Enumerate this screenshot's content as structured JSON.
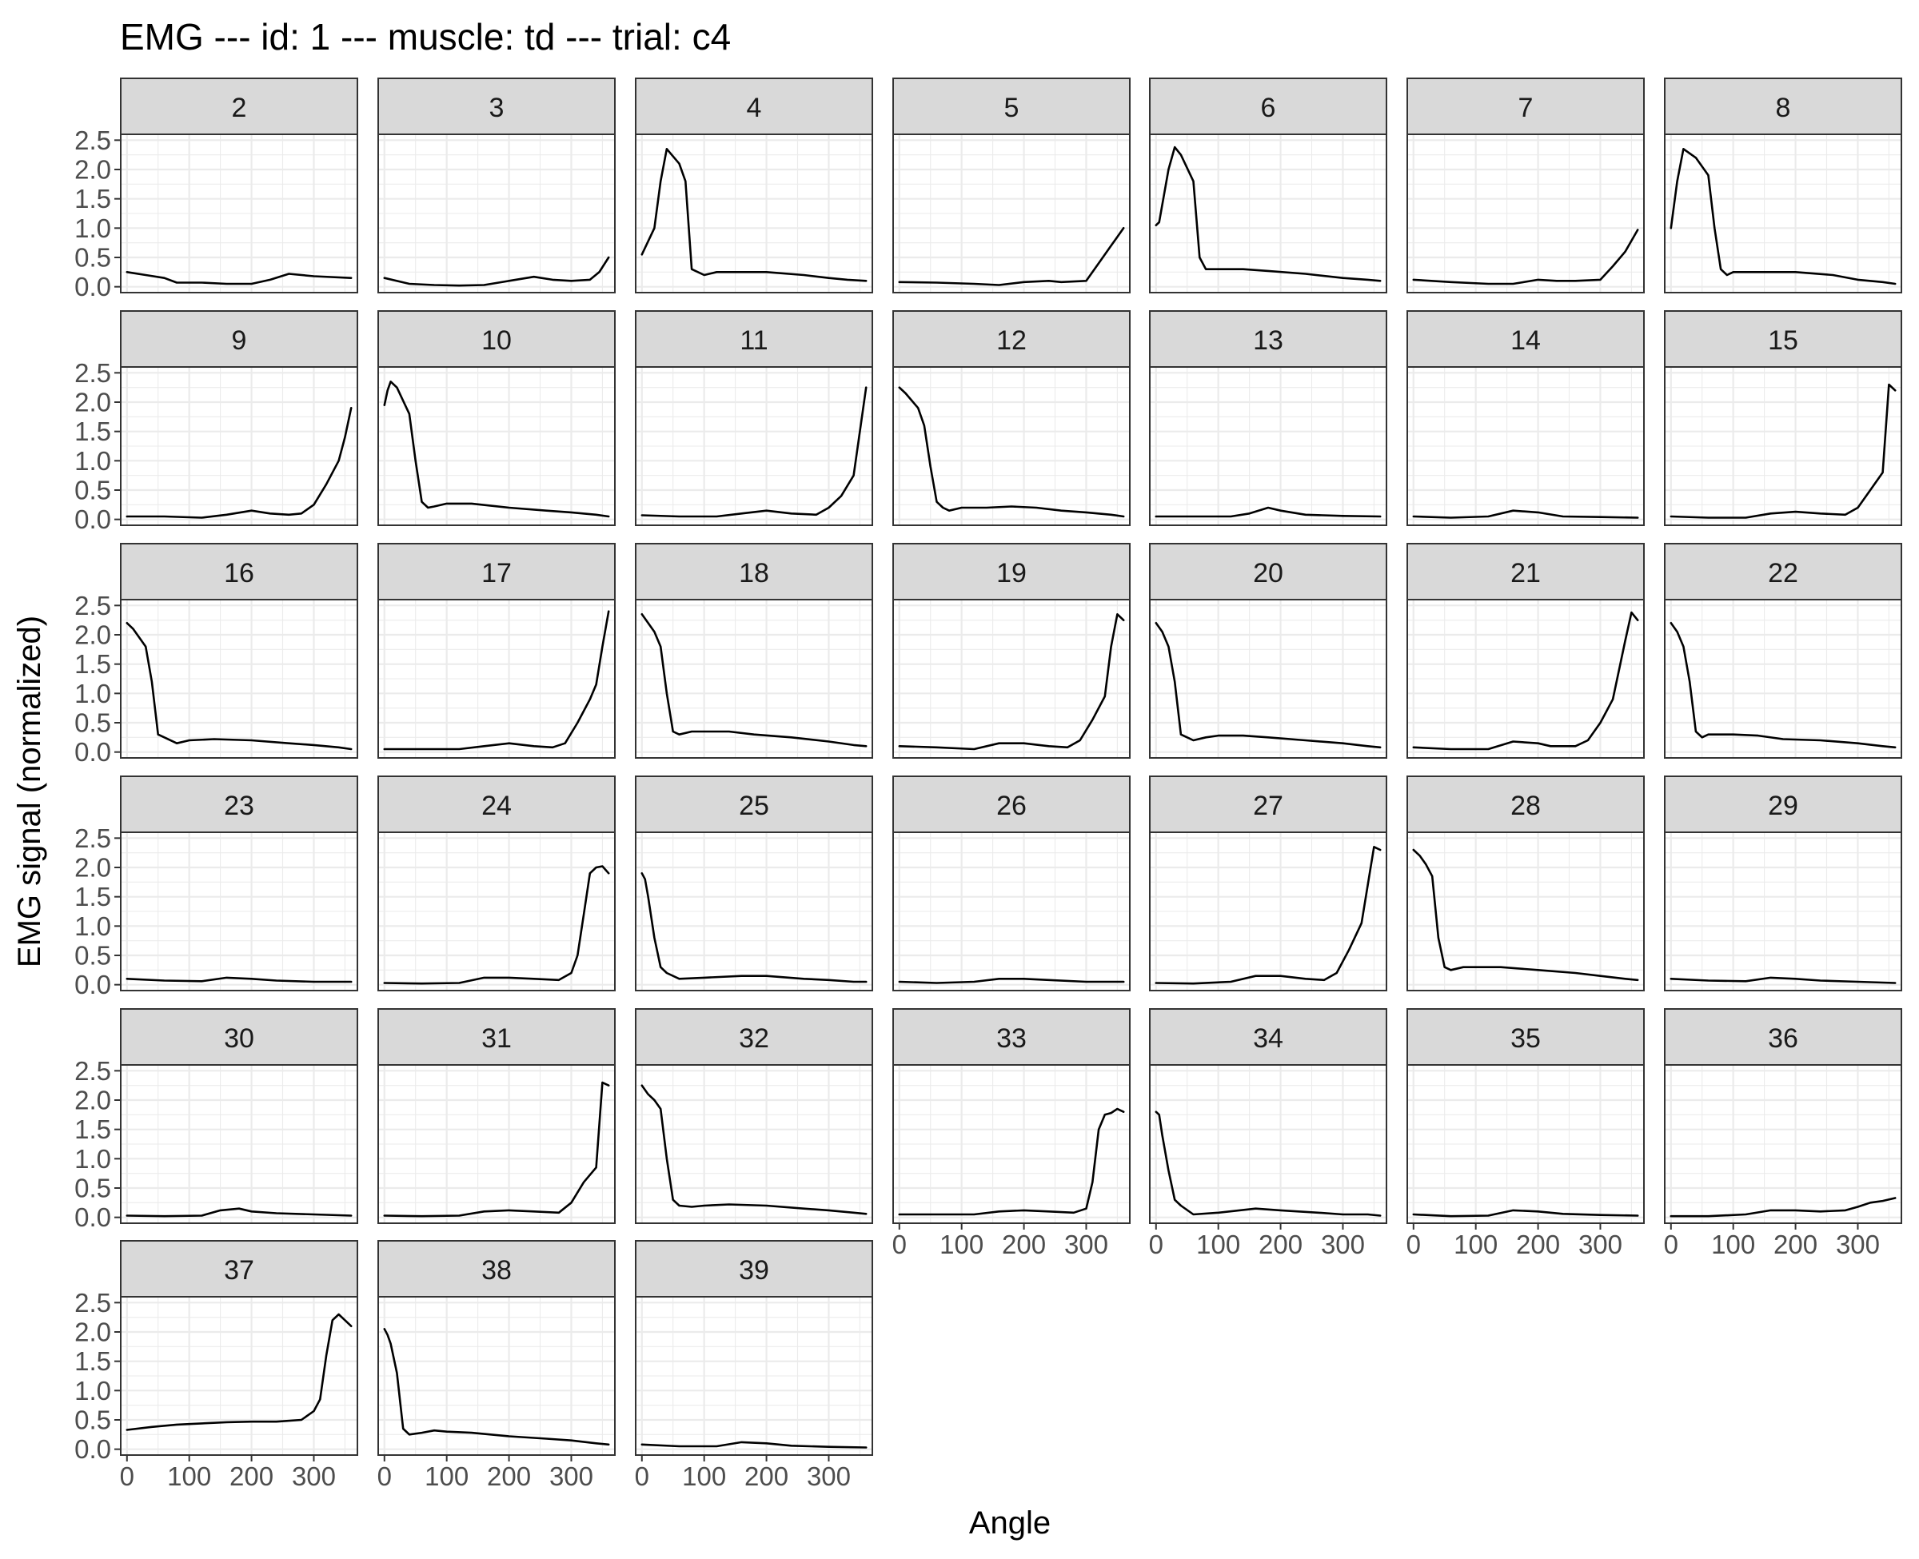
{
  "chart_data": {
    "type": "line",
    "title": "EMG --- id: 1 --- muscle: td --- trial: c4",
    "xlabel": "Angle",
    "ylabel": "EMG signal (normalized)",
    "xlim": [
      -10,
      370
    ],
    "ylim": [
      -0.1,
      2.6
    ],
    "x_ticks": [
      0,
      100,
      200,
      300
    ],
    "x_tick_labels": [
      "0",
      "100",
      "200",
      "300"
    ],
    "y_ticks": [
      0,
      0.5,
      1,
      1.5,
      2,
      2.5
    ],
    "y_tick_labels": [
      "0.0",
      "0.5",
      "1.0",
      "1.5",
      "2.0",
      "2.5"
    ],
    "grid": true,
    "layout": "facet_wrap ncol 7",
    "line_color": "#000000",
    "strip_fill": "#d9d9d9",
    "panels": [
      {
        "label": "2",
        "x": [
          0,
          30,
          60,
          80,
          120,
          160,
          200,
          230,
          260,
          300,
          360
        ],
        "y": [
          0.25,
          0.2,
          0.15,
          0.07,
          0.07,
          0.05,
          0.05,
          0.12,
          0.22,
          0.18,
          0.15
        ]
      },
      {
        "label": "3",
        "x": [
          0,
          40,
          80,
          120,
          160,
          200,
          240,
          270,
          300,
          330,
          345,
          360
        ],
        "y": [
          0.15,
          0.05,
          0.03,
          0.02,
          0.03,
          0.1,
          0.17,
          0.12,
          0.1,
          0.12,
          0.25,
          0.5
        ]
      },
      {
        "label": "4",
        "x": [
          0,
          20,
          30,
          40,
          60,
          70,
          80,
          100,
          120,
          160,
          200,
          260,
          300,
          330,
          360
        ],
        "y": [
          0.55,
          1.0,
          1.8,
          2.35,
          2.1,
          1.8,
          0.3,
          0.2,
          0.25,
          0.25,
          0.25,
          0.2,
          0.15,
          0.12,
          0.1
        ]
      },
      {
        "label": "5",
        "x": [
          0,
          60,
          120,
          160,
          200,
          240,
          260,
          300,
          320,
          340,
          360
        ],
        "y": [
          0.08,
          0.07,
          0.05,
          0.03,
          0.08,
          0.1,
          0.08,
          0.1,
          0.4,
          0.7,
          1.0
        ]
      },
      {
        "label": "6",
        "x": [
          0,
          5,
          20,
          30,
          40,
          60,
          70,
          80,
          100,
          140,
          180,
          240,
          300,
          340,
          360
        ],
        "y": [
          1.05,
          1.1,
          2.0,
          2.38,
          2.25,
          1.8,
          0.5,
          0.3,
          0.3,
          0.3,
          0.27,
          0.22,
          0.15,
          0.12,
          0.1
        ]
      },
      {
        "label": "7",
        "x": [
          0,
          60,
          120,
          160,
          200,
          230,
          260,
          300,
          320,
          340,
          360
        ],
        "y": [
          0.12,
          0.08,
          0.05,
          0.05,
          0.12,
          0.1,
          0.1,
          0.12,
          0.35,
          0.6,
          0.97
        ]
      },
      {
        "label": "8",
        "x": [
          0,
          10,
          20,
          40,
          60,
          70,
          80,
          90,
          100,
          140,
          200,
          260,
          300,
          340,
          360
        ],
        "y": [
          1.0,
          1.8,
          2.35,
          2.2,
          1.9,
          1.0,
          0.3,
          0.2,
          0.25,
          0.25,
          0.25,
          0.2,
          0.12,
          0.08,
          0.05
        ]
      },
      {
        "label": "9",
        "x": [
          0,
          60,
          120,
          160,
          200,
          230,
          260,
          280,
          300,
          320,
          340,
          350,
          360
        ],
        "y": [
          0.05,
          0.05,
          0.03,
          0.08,
          0.15,
          0.1,
          0.08,
          0.1,
          0.25,
          0.6,
          1.0,
          1.4,
          1.9
        ]
      },
      {
        "label": "10",
        "x": [
          0,
          5,
          10,
          20,
          40,
          50,
          60,
          70,
          80,
          100,
          140,
          200,
          260,
          300,
          340,
          360
        ],
        "y": [
          1.95,
          2.2,
          2.35,
          2.25,
          1.8,
          1.0,
          0.3,
          0.2,
          0.22,
          0.27,
          0.27,
          0.2,
          0.15,
          0.12,
          0.08,
          0.05
        ]
      },
      {
        "label": "11",
        "x": [
          0,
          60,
          120,
          160,
          200,
          240,
          280,
          300,
          320,
          340,
          350,
          360
        ],
        "y": [
          0.07,
          0.05,
          0.05,
          0.1,
          0.15,
          0.1,
          0.08,
          0.2,
          0.4,
          0.75,
          1.5,
          2.25
        ]
      },
      {
        "label": "12",
        "x": [
          0,
          10,
          30,
          40,
          50,
          60,
          70,
          80,
          100,
          140,
          180,
          220,
          260,
          300,
          340,
          360
        ],
        "y": [
          2.25,
          2.15,
          1.9,
          1.6,
          0.9,
          0.3,
          0.2,
          0.15,
          0.2,
          0.2,
          0.22,
          0.2,
          0.15,
          0.12,
          0.08,
          0.05
        ]
      },
      {
        "label": "13",
        "x": [
          0,
          60,
          120,
          150,
          180,
          200,
          240,
          300,
          360
        ],
        "y": [
          0.05,
          0.05,
          0.05,
          0.1,
          0.2,
          0.15,
          0.08,
          0.06,
          0.05
        ]
      },
      {
        "label": "14",
        "x": [
          0,
          60,
          120,
          160,
          200,
          240,
          300,
          360
        ],
        "y": [
          0.05,
          0.03,
          0.05,
          0.15,
          0.12,
          0.05,
          0.04,
          0.03
        ]
      },
      {
        "label": "15",
        "x": [
          0,
          60,
          120,
          160,
          200,
          240,
          280,
          300,
          320,
          340,
          350,
          360
        ],
        "y": [
          0.05,
          0.03,
          0.03,
          0.1,
          0.13,
          0.1,
          0.08,
          0.2,
          0.5,
          0.8,
          2.3,
          2.2
        ]
      },
      {
        "label": "16",
        "x": [
          0,
          10,
          20,
          30,
          40,
          50,
          60,
          80,
          100,
          140,
          200,
          260,
          300,
          340,
          360
        ],
        "y": [
          2.2,
          2.1,
          1.95,
          1.8,
          1.2,
          0.3,
          0.25,
          0.15,
          0.2,
          0.22,
          0.2,
          0.15,
          0.12,
          0.08,
          0.05
        ]
      },
      {
        "label": "17",
        "x": [
          0,
          60,
          120,
          160,
          200,
          240,
          270,
          290,
          310,
          330,
          340,
          350,
          360
        ],
        "y": [
          0.05,
          0.05,
          0.05,
          0.1,
          0.15,
          0.1,
          0.08,
          0.15,
          0.5,
          0.9,
          1.15,
          1.8,
          2.4
        ]
      },
      {
        "label": "18",
        "x": [
          0,
          10,
          20,
          30,
          40,
          50,
          60,
          80,
          100,
          140,
          180,
          240,
          300,
          340,
          360
        ],
        "y": [
          2.35,
          2.2,
          2.05,
          1.8,
          1.0,
          0.35,
          0.3,
          0.35,
          0.35,
          0.35,
          0.3,
          0.25,
          0.18,
          0.12,
          0.1
        ]
      },
      {
        "label": "19",
        "x": [
          0,
          60,
          120,
          160,
          200,
          240,
          270,
          290,
          310,
          330,
          340,
          350,
          360
        ],
        "y": [
          0.1,
          0.08,
          0.05,
          0.15,
          0.15,
          0.1,
          0.08,
          0.2,
          0.55,
          0.95,
          1.8,
          2.35,
          2.25
        ]
      },
      {
        "label": "20",
        "x": [
          0,
          10,
          20,
          30,
          40,
          50,
          60,
          80,
          100,
          140,
          180,
          240,
          300,
          340,
          360
        ],
        "y": [
          2.2,
          2.05,
          1.8,
          1.2,
          0.3,
          0.25,
          0.2,
          0.25,
          0.28,
          0.28,
          0.25,
          0.2,
          0.15,
          0.1,
          0.08
        ]
      },
      {
        "label": "21",
        "x": [
          0,
          60,
          120,
          160,
          200,
          220,
          260,
          280,
          300,
          320,
          340,
          350,
          360
        ],
        "y": [
          0.08,
          0.05,
          0.05,
          0.18,
          0.15,
          0.1,
          0.1,
          0.2,
          0.5,
          0.9,
          1.9,
          2.38,
          2.25
        ]
      },
      {
        "label": "22",
        "x": [
          0,
          10,
          20,
          30,
          40,
          50,
          60,
          80,
          100,
          140,
          180,
          240,
          300,
          340,
          360
        ],
        "y": [
          2.2,
          2.05,
          1.8,
          1.2,
          0.35,
          0.25,
          0.3,
          0.3,
          0.3,
          0.28,
          0.22,
          0.2,
          0.15,
          0.1,
          0.08
        ]
      },
      {
        "label": "23",
        "x": [
          0,
          60,
          120,
          160,
          200,
          240,
          300,
          360
        ],
        "y": [
          0.1,
          0.07,
          0.06,
          0.12,
          0.1,
          0.07,
          0.05,
          0.05
        ]
      },
      {
        "label": "24",
        "x": [
          0,
          60,
          120,
          160,
          200,
          240,
          280,
          300,
          310,
          320,
          330,
          340,
          350,
          360
        ],
        "y": [
          0.03,
          0.02,
          0.03,
          0.12,
          0.12,
          0.1,
          0.08,
          0.2,
          0.5,
          1.2,
          1.9,
          2.0,
          2.02,
          1.9
        ]
      },
      {
        "label": "25",
        "x": [
          0,
          5,
          10,
          20,
          30,
          40,
          60,
          100,
          160,
          200,
          260,
          300,
          340,
          360
        ],
        "y": [
          1.9,
          1.8,
          1.5,
          0.8,
          0.3,
          0.2,
          0.1,
          0.12,
          0.15,
          0.15,
          0.1,
          0.08,
          0.05,
          0.05
        ]
      },
      {
        "label": "26",
        "x": [
          0,
          60,
          120,
          160,
          200,
          240,
          300,
          360
        ],
        "y": [
          0.05,
          0.03,
          0.05,
          0.1,
          0.1,
          0.08,
          0.05,
          0.05
        ]
      },
      {
        "label": "27",
        "x": [
          0,
          60,
          120,
          160,
          200,
          240,
          270,
          290,
          310,
          330,
          340,
          350,
          360
        ],
        "y": [
          0.03,
          0.02,
          0.05,
          0.15,
          0.15,
          0.1,
          0.08,
          0.2,
          0.6,
          1.05,
          1.7,
          2.35,
          2.3
        ]
      },
      {
        "label": "28",
        "x": [
          0,
          10,
          20,
          30,
          40,
          50,
          60,
          80,
          100,
          140,
          200,
          260,
          300,
          340,
          360
        ],
        "y": [
          2.3,
          2.2,
          2.05,
          1.85,
          0.8,
          0.3,
          0.25,
          0.3,
          0.3,
          0.3,
          0.25,
          0.2,
          0.15,
          0.1,
          0.08
        ]
      },
      {
        "label": "29",
        "x": [
          0,
          60,
          120,
          160,
          200,
          240,
          300,
          360
        ],
        "y": [
          0.1,
          0.07,
          0.06,
          0.12,
          0.1,
          0.07,
          0.05,
          0.03
        ]
      },
      {
        "label": "30",
        "x": [
          0,
          60,
          120,
          150,
          180,
          200,
          240,
          300,
          360
        ],
        "y": [
          0.03,
          0.02,
          0.03,
          0.12,
          0.15,
          0.1,
          0.07,
          0.05,
          0.03
        ]
      },
      {
        "label": "31",
        "x": [
          0,
          60,
          120,
          160,
          200,
          240,
          280,
          300,
          320,
          340,
          350,
          360
        ],
        "y": [
          0.03,
          0.02,
          0.03,
          0.1,
          0.12,
          0.1,
          0.08,
          0.25,
          0.6,
          0.85,
          2.3,
          2.25
        ]
      },
      {
        "label": "32",
        "x": [
          0,
          10,
          20,
          30,
          40,
          50,
          60,
          80,
          100,
          140,
          200,
          260,
          300,
          340,
          360
        ],
        "y": [
          2.25,
          2.1,
          2.0,
          1.85,
          1.0,
          0.3,
          0.2,
          0.18,
          0.2,
          0.22,
          0.2,
          0.15,
          0.12,
          0.08,
          0.06
        ]
      },
      {
        "label": "33",
        "x": [
          0,
          60,
          120,
          160,
          200,
          240,
          280,
          300,
          310,
          320,
          330,
          340,
          350,
          360
        ],
        "y": [
          0.05,
          0.05,
          0.05,
          0.1,
          0.12,
          0.1,
          0.08,
          0.15,
          0.6,
          1.5,
          1.75,
          1.78,
          1.85,
          1.8
        ]
      },
      {
        "label": "34",
        "x": [
          0,
          5,
          10,
          20,
          30,
          40,
          60,
          100,
          160,
          200,
          260,
          300,
          340,
          360
        ],
        "y": [
          1.8,
          1.75,
          1.4,
          0.8,
          0.3,
          0.2,
          0.05,
          0.08,
          0.15,
          0.12,
          0.08,
          0.05,
          0.05,
          0.03
        ]
      },
      {
        "label": "35",
        "x": [
          0,
          60,
          120,
          160,
          200,
          240,
          300,
          360
        ],
        "y": [
          0.05,
          0.02,
          0.03,
          0.12,
          0.1,
          0.06,
          0.04,
          0.03
        ]
      },
      {
        "label": "36",
        "x": [
          0,
          60,
          120,
          160,
          200,
          240,
          280,
          300,
          320,
          340,
          360
        ],
        "y": [
          0.02,
          0.02,
          0.05,
          0.12,
          0.12,
          0.1,
          0.12,
          0.18,
          0.25,
          0.28,
          0.33
        ]
      },
      {
        "label": "37",
        "x": [
          0,
          40,
          80,
          120,
          160,
          200,
          240,
          280,
          300,
          310,
          320,
          330,
          340,
          350,
          360
        ],
        "y": [
          0.33,
          0.38,
          0.42,
          0.44,
          0.46,
          0.47,
          0.47,
          0.5,
          0.65,
          0.85,
          1.6,
          2.2,
          2.3,
          2.2,
          2.1
        ]
      },
      {
        "label": "38",
        "x": [
          0,
          5,
          10,
          20,
          30,
          40,
          60,
          80,
          100,
          140,
          200,
          260,
          300,
          340,
          360
        ],
        "y": [
          2.05,
          1.95,
          1.8,
          1.3,
          0.35,
          0.25,
          0.28,
          0.32,
          0.3,
          0.28,
          0.22,
          0.18,
          0.15,
          0.1,
          0.08
        ]
      },
      {
        "label": "39",
        "x": [
          0,
          60,
          120,
          160,
          200,
          240,
          300,
          360
        ],
        "y": [
          0.08,
          0.05,
          0.05,
          0.12,
          0.1,
          0.06,
          0.04,
          0.03
        ]
      }
    ]
  }
}
